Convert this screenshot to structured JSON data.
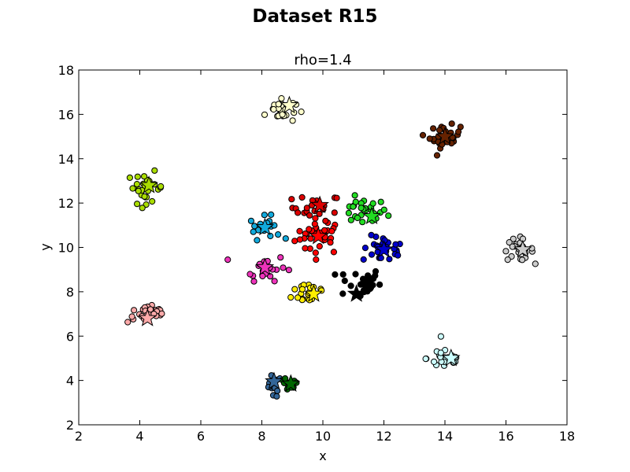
{
  "figure": {
    "title": "Dataset R15"
  },
  "chart_data": {
    "type": "scatter",
    "title": "rho=1.4",
    "xlabel": "x",
    "ylabel": "y",
    "xlim": [
      2,
      18
    ],
    "ylim": [
      2,
      18
    ],
    "xticks": [
      "2",
      "4",
      "6",
      "8",
      "10",
      "12",
      "14",
      "16",
      "18"
    ],
    "yticks": [
      "2",
      "4",
      "6",
      "8",
      "10",
      "12",
      "14",
      "16",
      "18"
    ],
    "grid": false,
    "legend": "none",
    "marker_style": {
      "point": "circle",
      "centroid": "star",
      "edge_color": "#000000"
    },
    "clusters": [
      {
        "color": "#ff0000",
        "center": [
          9.9,
          10.5
        ],
        "spread": [
          0.4,
          0.4
        ],
        "n": 33,
        "centroid": [
          9.85,
          10.5
        ]
      },
      {
        "color": "#dd0000",
        "center": [
          9.8,
          11.8
        ],
        "spread": [
          0.4,
          0.3
        ],
        "n": 22,
        "centroid": [
          9.9,
          11.9
        ]
      },
      {
        "color": "#22dd22",
        "center": [
          11.3,
          11.6
        ],
        "spread": [
          0.4,
          0.3
        ],
        "n": 28,
        "centroid": [
          11.6,
          11.4
        ]
      },
      {
        "color": "#0000cc",
        "center": [
          12.0,
          9.9
        ],
        "spread": [
          0.35,
          0.3
        ],
        "n": 28,
        "centroid": [
          12.0,
          9.9
        ]
      },
      {
        "color": "#000000",
        "center": [
          11.2,
          8.4
        ],
        "spread": [
          0.35,
          0.35
        ],
        "n": 28,
        "centroid": [
          11.1,
          7.9
        ]
      },
      {
        "color": "#ffee00",
        "center": [
          9.6,
          8.0
        ],
        "spread": [
          0.3,
          0.3
        ],
        "n": 22,
        "centroid": [
          9.7,
          7.9
        ]
      },
      {
        "color": "#ee33bb",
        "center": [
          8.1,
          9.1
        ],
        "spread": [
          0.35,
          0.3
        ],
        "n": 25,
        "centroid": [
          8.1,
          9.1
        ]
      },
      {
        "color": "#11aadd",
        "center": [
          8.1,
          10.9
        ],
        "spread": [
          0.25,
          0.25
        ],
        "n": 22,
        "centroid": [
          8.1,
          10.9
        ]
      },
      {
        "color": "#ffffcc",
        "center": [
          8.6,
          16.2
        ],
        "spread": [
          0.25,
          0.3
        ],
        "n": 28,
        "centroid": [
          8.9,
          16.4
        ]
      },
      {
        "color": "#662200",
        "center": [
          14.0,
          15.0
        ],
        "spread": [
          0.25,
          0.25
        ],
        "n": 30,
        "centroid": [
          14.0,
          15.0
        ]
      },
      {
        "color": "#aadd00",
        "center": [
          4.2,
          12.7
        ],
        "spread": [
          0.3,
          0.35
        ],
        "n": 30,
        "centroid": [
          4.3,
          12.8
        ]
      },
      {
        "color": "#cccccc",
        "center": [
          16.4,
          9.9
        ],
        "spread": [
          0.25,
          0.25
        ],
        "n": 25,
        "centroid": [
          16.55,
          9.9
        ]
      },
      {
        "color": "#ffaaaa",
        "center": [
          4.3,
          7.0
        ],
        "spread": [
          0.35,
          0.2
        ],
        "n": 28,
        "centroid": [
          4.25,
          6.8
        ]
      },
      {
        "color": "#ccffff",
        "center": [
          14.0,
          5.0
        ],
        "spread": [
          0.3,
          0.3
        ],
        "n": 25,
        "centroid": [
          14.2,
          5.0
        ]
      },
      {
        "color": "#336699",
        "center": [
          8.35,
          3.7
        ],
        "spread": [
          0.15,
          0.25
        ],
        "n": 12,
        "centroid": [
          8.4,
          3.95
        ]
      },
      {
        "color": "#006600",
        "center": [
          8.85,
          3.75
        ],
        "spread": [
          0.18,
          0.18
        ],
        "n": 14,
        "centroid": [
          8.95,
          3.85
        ]
      }
    ]
  }
}
